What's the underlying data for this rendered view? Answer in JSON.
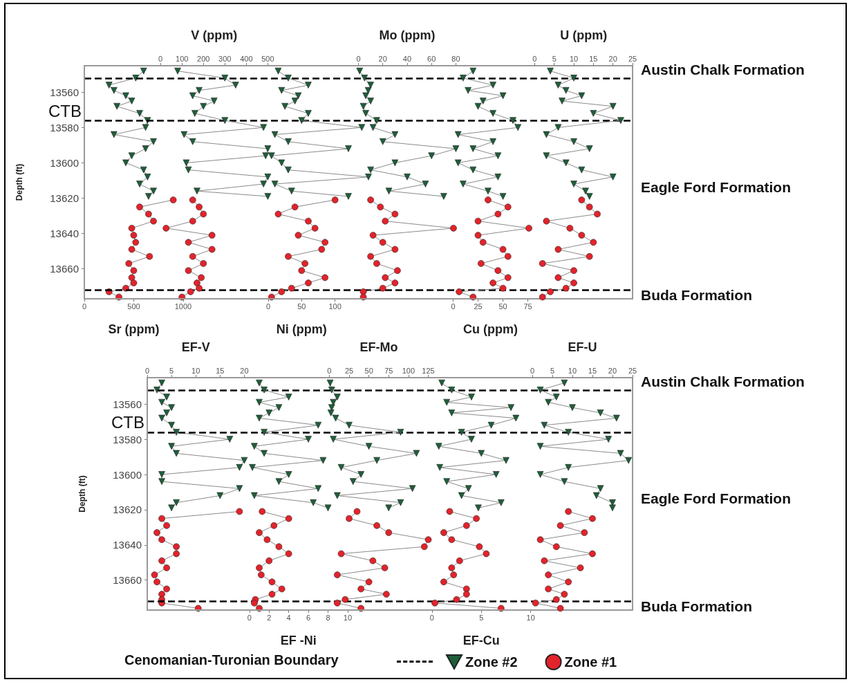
{
  "chart_data": [
    {
      "type": "line",
      "ylabel": "Depth (ft)",
      "ylim": [
        13677,
        13545
      ],
      "yticks": [
        13560,
        13580,
        13600,
        13620,
        13640,
        13660
      ],
      "xlabel": "Sr (ppm)",
      "xlim": [
        0,
        5550
      ],
      "xticks": [
        0,
        500,
        1000
      ],
      "ref_lines": [
        {
          "axis": "y",
          "value": 13552,
          "line_style": "dashed",
          "color": "#000000"
        },
        {
          "axis": "y",
          "value": 13576,
          "label": "CTB",
          "line_style": "dashed",
          "color": "#000000"
        },
        {
          "axis": "y",
          "value": 13672,
          "line_style": "dashed",
          "color": "#000000"
        }
      ],
      "annotations": [
        "Austin Chalk Formation",
        "Eagle Ford Formation",
        "Buda Formation"
      ],
      "series": [
        {
          "color": "#1e5e3a",
          "marker": "triangle",
          "x": [
            600,
            520,
            250,
            300,
            420,
            480,
            330,
            560,
            640,
            620,
            300,
            700,
            620,
            480,
            420,
            600,
            640,
            560,
            700,
            650
          ],
          "values": [
            13548,
            13552,
            13556,
            13559,
            13562,
            13565,
            13568,
            13572,
            13576,
            13580,
            13584,
            13588,
            13592,
            13596,
            13600,
            13604,
            13608,
            13612,
            13616,
            13619
          ]
        },
        {
          "color": "#e3232b",
          "marker": "circle",
          "x": [
            900,
            560,
            650,
            700,
            480,
            500,
            520,
            480,
            660,
            450,
            500,
            480,
            500,
            420,
            250,
            350
          ],
          "values": [
            13621,
            13625,
            13629,
            13633,
            13637,
            13641,
            13645,
            13649,
            13653,
            13657,
            13661,
            13665,
            13668,
            13671,
            13673,
            13676
          ]
        }
      ]
    },
    {
      "type": "line",
      "tick_labels": "x",
      "ylim": [
        13677,
        13545
      ],
      "xlabel": "V (ppm)",
      "xlim": [
        -355,
        2200
      ],
      "xticks": [
        0,
        100,
        200,
        300,
        400,
        500
      ],
      "series": [
        {
          "color": "#1e5e3a",
          "marker": "triangle",
          "x": [
            80,
            300,
            350,
            180,
            150,
            250,
            200,
            160,
            300,
            480,
            110,
            150,
            500,
            490,
            120,
            130,
            500,
            480,
            170,
            500
          ],
          "values": [
            13548,
            13552,
            13556,
            13559,
            13562,
            13565,
            13568,
            13572,
            13576,
            13580,
            13584,
            13588,
            13592,
            13596,
            13600,
            13604,
            13608,
            13612,
            13616,
            13619
          ]
        },
        {
          "color": "#e3232b",
          "marker": "circle",
          "x": [
            150,
            180,
            200,
            150,
            26,
            240,
            130,
            240,
            150,
            200,
            130,
            190,
            170,
            180,
            140,
            100
          ],
          "values": [
            13621,
            13625,
            13629,
            13633,
            13637,
            13641,
            13645,
            13649,
            13653,
            13657,
            13661,
            13665,
            13668,
            13671,
            13673,
            13676
          ]
        }
      ]
    },
    {
      "type": "line",
      "tick_labels": "x",
      "ylim": [
        13677,
        13545
      ],
      "xlabel": "Ni (ppm)",
      "xlim": [
        -275,
        545
      ],
      "xticks": [
        0,
        50,
        100
      ],
      "series": [
        {
          "color": "#1e5e3a",
          "marker": "triangle",
          "x": [
            15,
            30,
            60,
            20,
            45,
            40,
            25,
            60,
            50,
            140,
            10,
            30,
            120,
            5,
            20,
            30,
            150,
            10,
            35,
            120
          ],
          "values": [
            13548,
            13552,
            13556,
            13559,
            13562,
            13565,
            13568,
            13572,
            13576,
            13580,
            13584,
            13588,
            13592,
            13596,
            13600,
            13604,
            13608,
            13612,
            13616,
            13619
          ]
        },
        {
          "color": "#e3232b",
          "marker": "circle",
          "x": [
            100,
            40,
            15,
            60,
            70,
            45,
            85,
            80,
            30,
            55,
            50,
            85,
            60,
            35,
            20,
            5
          ],
          "values": [
            13621,
            13625,
            13629,
            13633,
            13637,
            13641,
            13645,
            13649,
            13653,
            13657,
            13661,
            13665,
            13668,
            13671,
            13673,
            13676
          ]
        }
      ]
    },
    {
      "type": "line",
      "tick_labels": "x",
      "ylim": [
        13677,
        13545
      ],
      "xlabel": "Mo (ppm)",
      "xlim": [
        -225,
        225
      ],
      "xticks": [
        0,
        20,
        40,
        60,
        80
      ],
      "series": [
        {
          "color": "#1e5e3a",
          "marker": "triangle",
          "x": [
            1,
            5,
            10,
            8,
            6,
            10,
            4,
            6,
            15,
            12,
            30,
            20,
            80,
            60,
            30,
            10,
            40,
            55,
            25,
            70
          ],
          "values": [
            13548,
            13552,
            13556,
            13559,
            13562,
            13565,
            13568,
            13572,
            13576,
            13580,
            13584,
            13588,
            13592,
            13596,
            13600,
            13604,
            13608,
            13612,
            13616,
            13619
          ]
        },
        {
          "color": "#e3232b",
          "marker": "circle",
          "x": [
            10,
            18,
            30,
            22,
            78,
            12,
            20,
            30,
            10,
            15,
            32,
            22,
            30,
            20,
            4,
            4
          ],
          "values": [
            13621,
            13625,
            13629,
            13633,
            13637,
            13641,
            13645,
            13649,
            13653,
            13657,
            13661,
            13665,
            13668,
            13671,
            13673,
            13676
          ]
        }
      ]
    },
    {
      "type": "line",
      "tick_labels": "x",
      "ylim": [
        13677,
        13545
      ],
      "xlabel": "Cu (ppm)",
      "xlim": [
        -370,
        180
      ],
      "xticks": [
        0,
        25,
        50,
        75
      ],
      "series": [
        {
          "color": "#1e5e3a",
          "marker": "triangle",
          "x": [
            20,
            10,
            40,
            15,
            50,
            30,
            25,
            40,
            60,
            65,
            5,
            40,
            20,
            45,
            5,
            20,
            45,
            10,
            35,
            50
          ],
          "values": [
            13548,
            13552,
            13556,
            13559,
            13562,
            13565,
            13568,
            13572,
            13576,
            13580,
            13584,
            13588,
            13592,
            13596,
            13600,
            13604,
            13608,
            13612,
            13616,
            13619
          ]
        },
        {
          "color": "#e3232b",
          "marker": "circle",
          "x": [
            35,
            55,
            45,
            25,
            76,
            25,
            30,
            50,
            55,
            28,
            45,
            55,
            40,
            50,
            6,
            20
          ],
          "values": [
            13621,
            13625,
            13629,
            13633,
            13637,
            13641,
            13645,
            13649,
            13653,
            13657,
            13661,
            13665,
            13668,
            13671,
            13673,
            13676
          ]
        }
      ]
    },
    {
      "type": "line",
      "tick_labels": "x",
      "ylim": [
        13677,
        13545
      ],
      "xlabel": "U (ppm)",
      "xlim": [
        -115,
        25
      ],
      "xticks": [
        0,
        5,
        10,
        15,
        20,
        25
      ],
      "series": [
        {
          "color": "#1e5e3a",
          "marker": "triangle",
          "x": [
            4,
            10,
            6,
            8,
            12,
            7,
            20,
            15,
            22,
            6,
            3,
            10,
            14,
            3,
            8,
            12,
            20,
            10,
            13,
            14
          ],
          "values": [
            13548,
            13552,
            13556,
            13559,
            13562,
            13565,
            13568,
            13572,
            13576,
            13580,
            13584,
            13588,
            13592,
            13596,
            13600,
            13604,
            13608,
            13612,
            13616,
            13619
          ]
        },
        {
          "color": "#e3232b",
          "marker": "circle",
          "x": [
            12,
            14,
            16,
            3,
            9,
            12,
            15,
            6,
            14,
            2,
            10,
            6,
            10,
            8,
            4,
            2
          ],
          "values": [
            13621,
            13625,
            13629,
            13633,
            13637,
            13641,
            13645,
            13649,
            13653,
            13657,
            13661,
            13665,
            13668,
            13671,
            13673,
            13676
          ]
        }
      ]
    },
    {
      "type": "line",
      "ylabel": "Depth (ft)",
      "ylim": [
        13677,
        13545
      ],
      "yticks": [
        13560,
        13580,
        13600,
        13620,
        13640,
        13660
      ],
      "xlabel": "EF-V",
      "xlim": [
        0,
        100
      ],
      "xticks": [
        0,
        5,
        10,
        15,
        20
      ],
      "ref_lines": [
        {
          "axis": "y",
          "value": 13552,
          "line_style": "dashed",
          "color": "#000000"
        },
        {
          "axis": "y",
          "value": 13576,
          "label": "CTB",
          "line_style": "dashed",
          "color": "#000000"
        },
        {
          "axis": "y",
          "value": 13672,
          "line_style": "dashed",
          "color": "#000000"
        }
      ],
      "annotations": [
        "Austin Chalk Formation",
        "Eagle Ford Formation",
        "Buda Formation"
      ],
      "series": [
        {
          "color": "#1e5e3a",
          "marker": "triangle",
          "x": [
            3,
            2,
            4,
            3,
            5,
            4,
            3,
            5,
            6,
            17,
            5,
            6,
            20,
            19,
            3,
            3,
            19,
            15,
            6,
            5
          ],
          "values": [
            13548,
            13552,
            13556,
            13559,
            13562,
            13565,
            13568,
            13572,
            13576,
            13580,
            13584,
            13588,
            13592,
            13596,
            13600,
            13604,
            13608,
            13612,
            13616,
            13619
          ]
        },
        {
          "color": "#e3232b",
          "marker": "circle",
          "x": [
            19,
            3,
            4,
            2,
            3,
            6,
            6,
            3,
            4,
            1.5,
            2,
            4,
            3,
            3,
            3,
            10.5
          ],
          "values": [
            13621,
            13625,
            13629,
            13633,
            13637,
            13641,
            13645,
            13649,
            13653,
            13657,
            13661,
            13665,
            13668,
            13671,
            13673,
            13676
          ]
        }
      ]
    },
    {
      "type": "line",
      "tick_labels": "x",
      "ylim": [
        13677,
        13545
      ],
      "xlabel": "EF -Ni",
      "xlim": [
        -10.4,
        39
      ],
      "xticks": [
        0,
        2,
        4,
        6,
        8,
        10
      ],
      "series": [
        {
          "color": "#1e5e3a",
          "marker": "triangle",
          "x": [
            1,
            1.5,
            4,
            1,
            3,
            2,
            1,
            7,
            1.5,
            6,
            0.5,
            1.5,
            7.5,
            0.3,
            4,
            3,
            7,
            0.5,
            6.5,
            8
          ],
          "values": [
            13548,
            13552,
            13556,
            13559,
            13562,
            13565,
            13568,
            13572,
            13576,
            13580,
            13584,
            13588,
            13592,
            13596,
            13600,
            13604,
            13608,
            13612,
            13616,
            13619
          ]
        },
        {
          "color": "#e3232b",
          "marker": "circle",
          "x": [
            1.3,
            4,
            2.5,
            1,
            1.8,
            3,
            4,
            2,
            1,
            1.2,
            2.3,
            3.3,
            2.3,
            0.6,
            0.5,
            1
          ],
          "values": [
            13621,
            13625,
            13629,
            13633,
            13637,
            13641,
            13645,
            13649,
            13653,
            13657,
            13661,
            13665,
            13668,
            13671,
            13673,
            13676
          ]
        }
      ]
    },
    {
      "type": "line",
      "tick_labels": "x",
      "ylim": [
        13677,
        13545
      ],
      "xlabel": "EF-Mo",
      "xlim": [
        -230,
        383
      ],
      "xticks": [
        0,
        25,
        50,
        75,
        100,
        125
      ],
      "series": [
        {
          "color": "#1e5e3a",
          "marker": "triangle",
          "x": [
            1,
            3,
            10,
            5,
            3,
            2,
            8,
            25,
            90,
            5,
            50,
            110,
            60,
            15,
            40,
            30,
            105,
            10,
            90,
            75
          ],
          "values": [
            13548,
            13552,
            13556,
            13559,
            13562,
            13565,
            13568,
            13572,
            13576,
            13580,
            13584,
            13588,
            13592,
            13596,
            13600,
            13604,
            13608,
            13612,
            13616,
            13619
          ]
        },
        {
          "color": "#e3232b",
          "marker": "circle",
          "x": [
            35,
            25,
            60,
            75,
            125,
            120,
            15,
            55,
            70,
            10,
            50,
            40,
            72,
            20,
            10,
            40
          ],
          "values": [
            13621,
            13625,
            13629,
            13633,
            13637,
            13641,
            13645,
            13649,
            13653,
            13657,
            13661,
            13665,
            13668,
            13671,
            13673,
            13676
          ]
        }
      ]
    },
    {
      "type": "line",
      "tick_labels": "x",
      "ylim": [
        13677,
        13545
      ],
      "xlabel": "EF-Cu",
      "xlim": [
        -28.8,
        20.3
      ],
      "xticks": [
        0,
        5,
        10
      ],
      "series": [
        {
          "color": "#1e5e3a",
          "marker": "triangle",
          "x": [
            1,
            2,
            4,
            1.5,
            8,
            2,
            8.5,
            6,
            3,
            4,
            0.7,
            5,
            7.5,
            0.8,
            6.5,
            1.5,
            3.7,
            3,
            7,
            4.7
          ],
          "values": [
            13548,
            13552,
            13556,
            13559,
            13562,
            13565,
            13568,
            13572,
            13576,
            13580,
            13584,
            13588,
            13592,
            13596,
            13600,
            13604,
            13608,
            13612,
            13616,
            13619
          ]
        },
        {
          "color": "#e3232b",
          "marker": "circle",
          "x": [
            1.8,
            4.5,
            3.5,
            1.2,
            2,
            4.8,
            5.5,
            2.8,
            2,
            2.2,
            1.2,
            3.5,
            3.5,
            2.5,
            0.3,
            7
          ],
          "values": [
            13621,
            13625,
            13629,
            13633,
            13637,
            13641,
            13645,
            13649,
            13653,
            13657,
            13661,
            13665,
            13668,
            13671,
            13673,
            13676
          ]
        }
      ]
    },
    {
      "type": "line",
      "tick_labels": "x",
      "ylim": [
        13677,
        13545
      ],
      "xlabel": "EF-U",
      "xlim": [
        -96,
        25
      ],
      "xticks": [
        0,
        5,
        10,
        15,
        20,
        25
      ],
      "legend": "bottom",
      "annotations": [
        "Cenomanian-Turonian Boundary"
      ],
      "series": [
        {
          "name": "Zone #2",
          "color": "#1e5e3a",
          "marker": "triangle",
          "x": [
            8,
            2,
            6,
            4,
            10,
            17,
            21,
            3,
            9,
            19,
            2,
            22,
            24,
            9,
            2,
            8,
            17,
            16,
            20,
            20
          ],
          "values": [
            13548,
            13552,
            13556,
            13559,
            13562,
            13565,
            13568,
            13572,
            13576,
            13580,
            13584,
            13588,
            13592,
            13596,
            13600,
            13604,
            13608,
            13612,
            13616,
            13619
          ]
        },
        {
          "name": "Zone #1",
          "color": "#e3232b",
          "marker": "circle",
          "x": [
            9,
            15,
            7,
            13,
            2,
            6,
            15,
            3,
            12,
            4,
            9,
            4,
            8,
            6,
            0.8,
            7
          ],
          "values": [
            13621,
            13625,
            13629,
            13633,
            13637,
            13641,
            13645,
            13649,
            13653,
            13657,
            13661,
            13665,
            13668,
            13671,
            13673,
            13676
          ]
        }
      ]
    }
  ]
}
